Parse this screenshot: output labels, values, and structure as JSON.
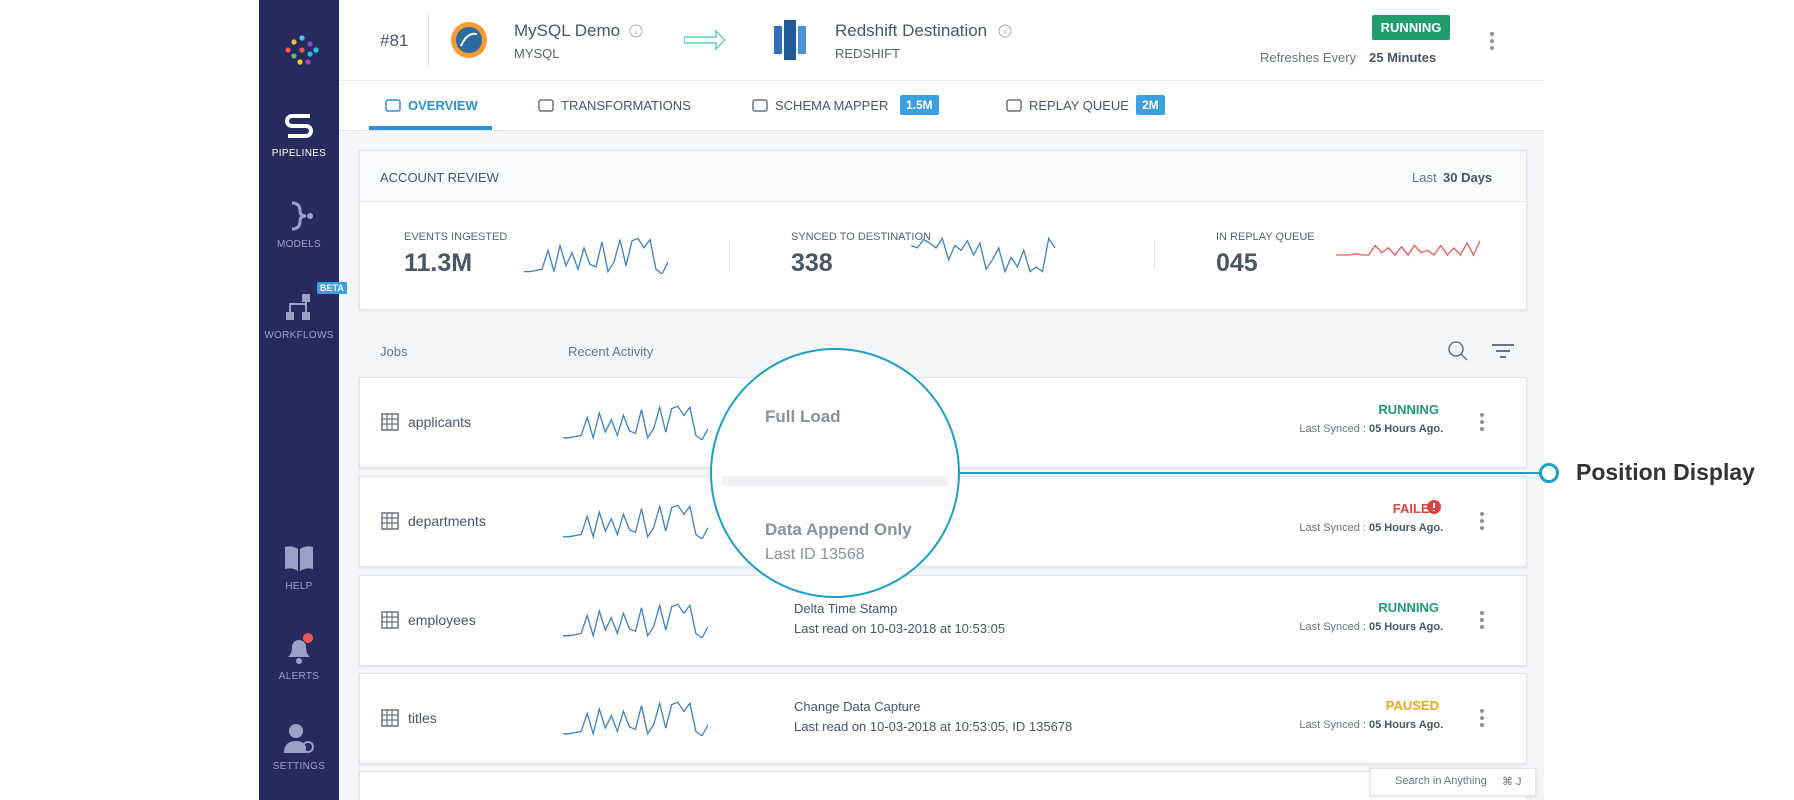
{
  "sidebar": {
    "items": [
      "PIPELINES",
      "MODELS",
      "WORKFLOWS",
      "HELP",
      "ALERTS",
      "SETTINGS"
    ],
    "beta": "BETA"
  },
  "header": {
    "id": "#81",
    "source": {
      "name": "MySQL Demo",
      "type": "MYSQL"
    },
    "destination": {
      "name": "Redshift Destination",
      "type": "REDSHIFT"
    },
    "status": "RUNNING",
    "refresh_label": "Refreshes Every",
    "refresh_value": "25 Minutes"
  },
  "tabs": [
    {
      "label": "OVERVIEW"
    },
    {
      "label": "TRANSFORMATIONS"
    },
    {
      "label": "SCHEMA MAPPER",
      "badge": "1.5M"
    },
    {
      "label": "REPLAY QUEUE",
      "badge": "2M"
    }
  ],
  "account_review": {
    "title": "ACCOUNT REVIEW",
    "period_prefix": "Last",
    "period": "30 Days",
    "metrics": [
      {
        "label": "EVENTS INGESTED",
        "value": "11.3M"
      },
      {
        "label": "SYNCED TO DESTINATION",
        "value": "338"
      },
      {
        "label": "IN REPLAY QUEUE",
        "value": "045"
      }
    ]
  },
  "jobs_header": {
    "columns": [
      "Jobs",
      "Recent Activity"
    ]
  },
  "jobs": [
    {
      "name": "applicants",
      "mode": "Full Load",
      "status": "RUNNING",
      "last_synced_label": "Last Synced :",
      "last_synced": "05 Hours Ago."
    },
    {
      "name": "departments",
      "mode": "Data Append Only",
      "detail": "Last ID 13568",
      "status": "FAILED",
      "last_synced_label": "Last Synced :",
      "last_synced": "05 Hours Ago."
    },
    {
      "name": "employees",
      "mode": "Delta Time Stamp",
      "detail": "Last read on 10-03-2018 at 10:53:05",
      "status": "RUNNING",
      "last_synced_label": "Last Synced :",
      "last_synced": "05 Hours Ago."
    },
    {
      "name": "titles",
      "mode": "Change Data Capture",
      "detail": "Last read on 10-03-2018 at 10:53:05, ID 135678",
      "status": "PAUSED",
      "last_synced_label": "Last Synced :",
      "last_synced": "05 Hours Ago."
    }
  ],
  "search": {
    "placeholder": "Search in Anything",
    "shortcut": "⌘ J"
  },
  "callout": {
    "label": "Position Display"
  }
}
